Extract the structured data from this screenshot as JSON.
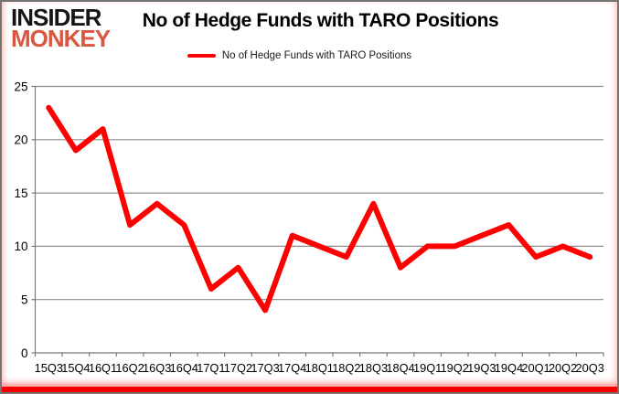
{
  "brand": {
    "line1": "INSIDER",
    "line2": "MONKEY",
    "color_line1": "#161616",
    "color_line2": "#d95740"
  },
  "header": {
    "title": "No of Hedge Funds with TARO Positions"
  },
  "legend": {
    "label": "No of Hedge Funds with TARO Positions",
    "swatch_color": "#fe0000"
  },
  "chart_data": {
    "type": "line",
    "title": "No of Hedge Funds with TARO Positions",
    "categories": [
      "15Q3",
      "15Q4",
      "16Q1",
      "16Q2",
      "16Q3",
      "16Q4",
      "17Q1",
      "17Q2",
      "17Q3",
      "17Q4",
      "18Q1",
      "18Q2",
      "18Q3",
      "18Q4",
      "19Q1",
      "19Q2",
      "19Q3",
      "19Q4",
      "20Q1",
      "20Q2",
      "20Q3"
    ],
    "series": [
      {
        "name": "No of Hedge Funds with TARO Positions",
        "color": "#fe0000",
        "values": [
          23,
          19,
          21,
          12,
          14,
          12,
          6,
          8,
          4,
          11,
          10,
          9,
          14,
          8,
          10,
          10,
          11,
          12,
          9,
          10,
          9
        ]
      }
    ],
    "xlabel": "",
    "ylabel": "",
    "ylim": [
      0,
      25
    ],
    "yticks": [
      0,
      5,
      10,
      15,
      20,
      25
    ],
    "grid": "horizontal",
    "legend_position": "top-center",
    "colors": {
      "gridline": "#8c8c8c",
      "axis": "#7a7a7a",
      "tick_text": "#000000"
    }
  },
  "frame": {
    "border_color": "#757575",
    "bottom_bar_color": "#f40000"
  }
}
